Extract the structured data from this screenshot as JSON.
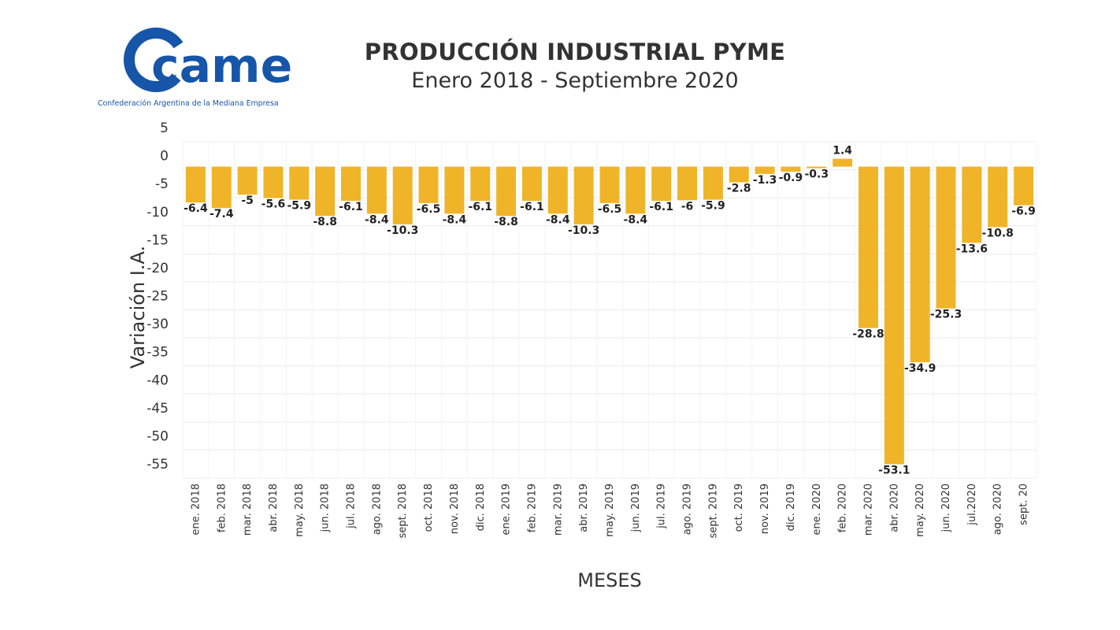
{
  "logo": {
    "wordmark": "came",
    "tagline": "Confederación Argentina de la Mediana Empresa",
    "color": "#1655a8"
  },
  "chart_data": {
    "type": "bar",
    "title": "PRODUCCIÓN INDUSTRIAL PYME",
    "subtitle": "Enero 2018 - Septiembre 2020",
    "xlabel": "MESES",
    "ylabel": "Variación I.A.",
    "ylim": [
      -55,
      5
    ],
    "yticks": [
      5,
      0,
      -5,
      -10,
      -15,
      -20,
      -25,
      -30,
      -35,
      -40,
      -45,
      -50,
      -55
    ],
    "grid": true,
    "bar_color": "#efb428",
    "categories": [
      "ene. 2018",
      "feb. 2018",
      "mar. 2018",
      "abr. 2018",
      "may. 2018",
      "jun. 2018",
      "jul. 2018",
      "ago. 2018",
      "sept. 2018",
      "oct. 2018",
      "nov. 2018",
      "dic. 2018",
      "ene. 2019",
      "feb. 2019",
      "mar. 2019",
      "abr. 2019",
      "may. 2019",
      "jun. 2019",
      "jul. 2019",
      "ago. 2019",
      "sept. 2019",
      "oct. 2019",
      "nov. 2019",
      "dic. 2019",
      "ene. 2020",
      "feb. 2020",
      "mar. 2020",
      "abr. 2020",
      "may. 2020",
      "jun. 2020",
      "jul.2020",
      "ago. 2020",
      "sept. 20"
    ],
    "values": [
      -6.4,
      -7.4,
      -5,
      -5.6,
      -5.9,
      -8.8,
      -6.1,
      -8.4,
      -10.3,
      -6.5,
      -8.4,
      -6.1,
      -8.8,
      -6.1,
      -8.4,
      -10.3,
      -6.5,
      -8.4,
      -6.1,
      -6,
      -5.9,
      -2.8,
      -1.3,
      -0.9,
      -0.3,
      1.4,
      -28.8,
      -53.1,
      -34.9,
      -25.3,
      -13.6,
      -10.8,
      -6.9
    ]
  }
}
